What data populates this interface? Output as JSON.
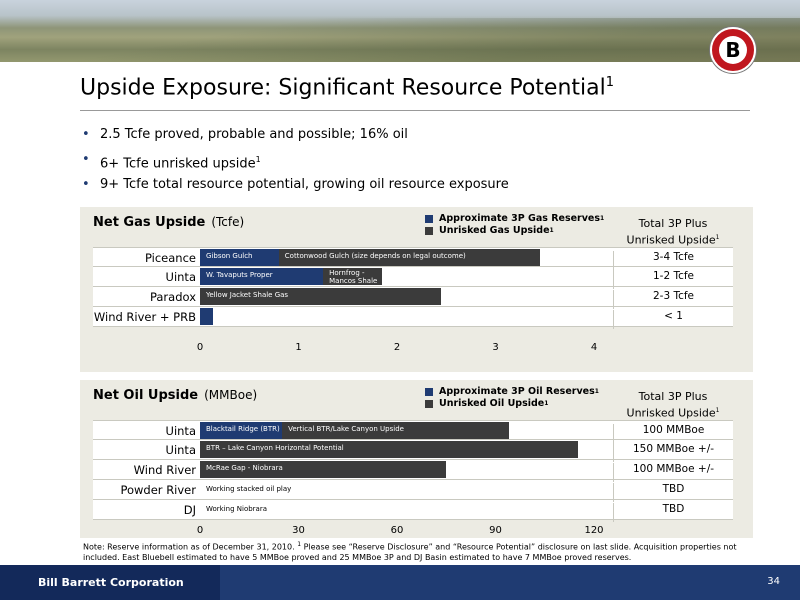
{
  "header": {
    "title": "Upside Exposure: Significant Resource Potential",
    "title_sup": "1",
    "logo_letter": "B"
  },
  "bullets": [
    {
      "text": "2.5 Tcfe proved, probable and possible; 16% oil",
      "sup": ""
    },
    {
      "text": "6+ Tcfe unrisked upside",
      "sup": "1"
    },
    {
      "text": "9+ Tcfe total resource potential, growing oil resource exposure",
      "sup": ""
    }
  ],
  "gas": {
    "title": "Net Gas Upside",
    "unit": "(Tcfe)",
    "legend": {
      "reserves": "Approximate 3P Gas Reserves",
      "upside": "Unrisked Gas Upside",
      "sup": "1"
    },
    "total_header": {
      "line1": "Total 3P Plus",
      "line2": "Unrisked Upside",
      "sup": "1"
    },
    "axis_ticks": [
      "0",
      "1",
      "2",
      "3",
      "4"
    ],
    "rows": [
      {
        "label": "Piceance",
        "blue_text": "Gibson Gulch",
        "gray_text": "Cottonwood Gulch (size depends on legal outcome)",
        "total": "3-4 Tcfe"
      },
      {
        "label": "Uinta",
        "blue_text": "W. Tavaputs Proper",
        "gray_text_1": "Hornfrog -",
        "gray_text_2": "Mancos Shale",
        "total": "1-2 Tcfe"
      },
      {
        "label": "Paradox",
        "gray_text": "Yellow Jacket Shale Gas",
        "total": "2-3 Tcfe"
      },
      {
        "label": "Wind River + PRB",
        "total": "< 1"
      }
    ]
  },
  "oil": {
    "title": "Net Oil Upside",
    "unit": "(MMBoe)",
    "legend": {
      "reserves": "Approximate 3P Oil Reserves",
      "upside": "Unrisked Oil Upside",
      "sup": "1"
    },
    "total_header": {
      "line1": "Total 3P Plus",
      "line2": "Unrisked Upside",
      "sup": "1"
    },
    "axis_ticks": [
      "0",
      "30",
      "60",
      "90",
      "120"
    ],
    "rows": [
      {
        "label": "Uinta",
        "blue_text": "Blacktail Ridge (BTR)",
        "gray_text": "Vertical BTR/Lake Canyon Upside",
        "total": "100 MMBoe"
      },
      {
        "label": "Uinta",
        "gray_text": "BTR – Lake Canyon Horizontal Potential",
        "total": "150 MMBoe +/-"
      },
      {
        "label": "Wind River",
        "gray_text": "McRae Gap - Niobrara",
        "total": "100 MMBoe +/-"
      },
      {
        "label": "Powder River",
        "plain_text": "Working stacked oil play",
        "total": "TBD"
      },
      {
        "label": "DJ",
        "plain_text": "Working Niobrara",
        "total": "TBD"
      }
    ]
  },
  "chart_data": [
    {
      "type": "bar",
      "title": "Net Gas Upside",
      "xlabel": "(Tcfe)",
      "categories": [
        "Piceance",
        "Uinta",
        "Paradox",
        "Wind River + PRB"
      ],
      "xlim": [
        0,
        4
      ],
      "series": [
        {
          "name": "Approximate 3P Gas Reserves",
          "values": [
            0.8,
            1.25,
            0,
            0.13
          ]
        },
        {
          "name": "Unrisked Gas Upside",
          "values": [
            2.65,
            0.6,
            2.45,
            0
          ]
        }
      ]
    },
    {
      "type": "bar",
      "title": "Net Oil Upside",
      "xlabel": "(MMBoe)",
      "categories": [
        "Uinta",
        "Uinta",
        "Wind River",
        "Powder River",
        "DJ"
      ],
      "xlim": [
        0,
        120
      ],
      "series": [
        {
          "name": "Approximate 3P Oil Reserves",
          "values": [
            25,
            0,
            0,
            0,
            0
          ]
        },
        {
          "name": "Unrisked Oil Upside",
          "values": [
            69,
            115,
            75,
            0,
            0
          ]
        }
      ]
    }
  ],
  "note": {
    "text1": "Note: Reserve information as of December 31, 2010.",
    "sup": "1",
    "text2": " Please see “Reserve Disclosure” and “Resource Potential” disclosure on last slide. Acquisition properties not included. East Bluebell estimated to have 5 MMBoe proved and 25 MMBoe 3P and DJ Basin estimated to have 7 MMBoe proved reserves."
  },
  "footer": {
    "company": "Bill Barrett Corporation",
    "page": "34"
  }
}
